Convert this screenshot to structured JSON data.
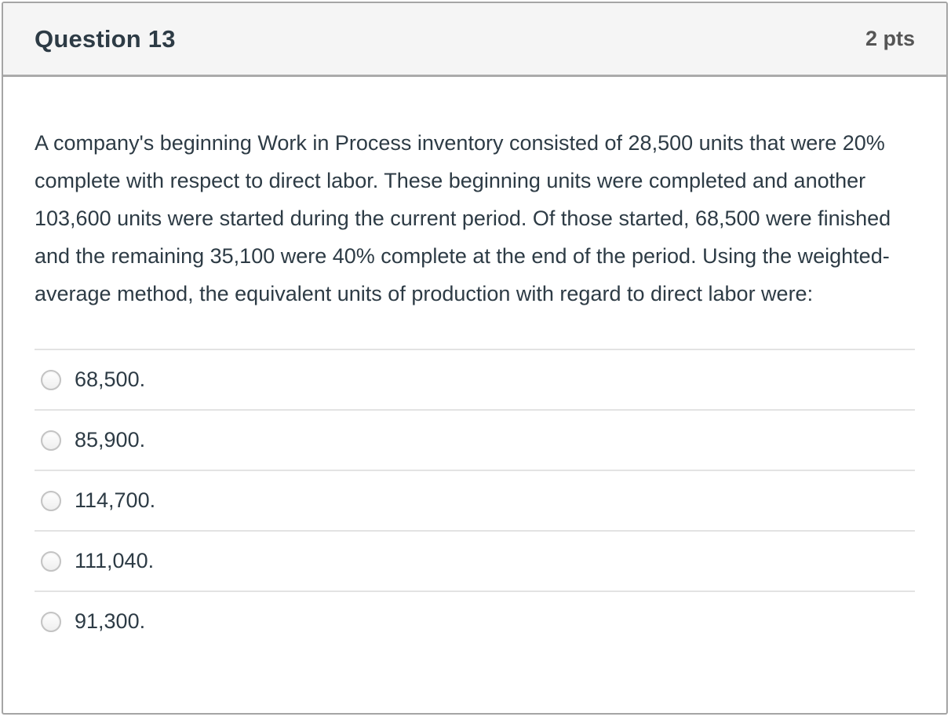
{
  "header": {
    "title": "Question 13",
    "points": "2 pts"
  },
  "question": {
    "text": "A company's beginning Work in Process inventory consisted of 28,500 units that were 20% complete with respect to direct labor. These beginning units were completed and another 103,600 units were started during the current period. Of those started, 68,500 were finished and the remaining 35,100 were 40% complete at the end of the period. Using the weighted-average method, the equivalent units of production with regard to direct labor were:"
  },
  "options": [
    {
      "label": "68,500.",
      "selected": false
    },
    {
      "label": "85,900.",
      "selected": false
    },
    {
      "label": "114,700.",
      "selected": false
    },
    {
      "label": "111,040.",
      "selected": false
    },
    {
      "label": "91,300.",
      "selected": false
    }
  ],
  "colors": {
    "text": "#2d3b45",
    "points_text": "#555555",
    "header_bg": "#f5f5f5",
    "card_border": "#a5a5a5",
    "header_border": "#ababab",
    "divider": "#e3e3e3",
    "radio_border": "#c3c3c3"
  }
}
